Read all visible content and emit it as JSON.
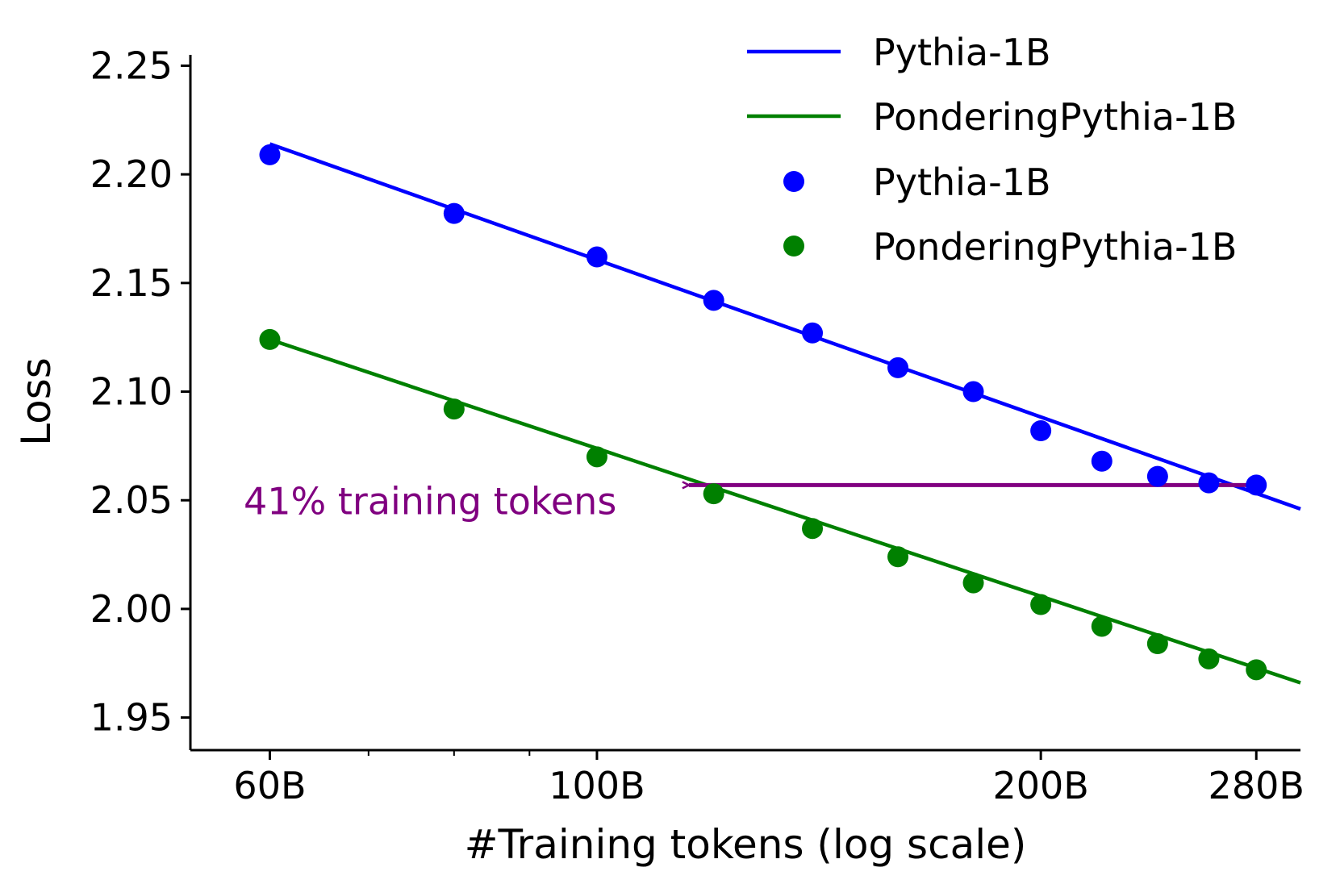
{
  "chart_data": {
    "type": "scatter",
    "xscale": "log",
    "xlabel": "#Training tokens (log scale)",
    "ylabel": "Loss",
    "xlim": [
      53,
      300
    ],
    "ylim": [
      1.935,
      2.255
    ],
    "xticks": [
      {
        "value": 60,
        "label": "60B"
      },
      {
        "value": 100,
        "label": "100B"
      },
      {
        "value": 200,
        "label": "200B"
      },
      {
        "value": 280,
        "label": "280B"
      }
    ],
    "xminor_ticks": [
      70,
      80,
      90
    ],
    "yticks": [
      {
        "value": 1.95,
        "label": "1.95"
      },
      {
        "value": 2.0,
        "label": "2.00"
      },
      {
        "value": 2.05,
        "label": "2.05"
      },
      {
        "value": 2.1,
        "label": "2.10"
      },
      {
        "value": 2.15,
        "label": "2.15"
      },
      {
        "value": 2.2,
        "label": "2.20"
      },
      {
        "value": 2.25,
        "label": "2.25"
      }
    ],
    "series": [
      {
        "name": "Pythia-1B",
        "color": "#0000ff",
        "points": [
          {
            "x": 60,
            "y": 2.209
          },
          {
            "x": 80,
            "y": 2.182
          },
          {
            "x": 100,
            "y": 2.162
          },
          {
            "x": 120,
            "y": 2.142
          },
          {
            "x": 140,
            "y": 2.127
          },
          {
            "x": 160,
            "y": 2.111
          },
          {
            "x": 180,
            "y": 2.1
          },
          {
            "x": 200,
            "y": 2.082
          },
          {
            "x": 220,
            "y": 2.068
          },
          {
            "x": 240,
            "y": 2.061
          },
          {
            "x": 260,
            "y": 2.058
          },
          {
            "x": 280,
            "y": 2.057
          }
        ],
        "fit": [
          {
            "x": 60,
            "y": 2.214
          },
          {
            "x": 300,
            "y": 2.046
          }
        ]
      },
      {
        "name": "PonderingPythia-1B",
        "color": "#008000",
        "points": [
          {
            "x": 60,
            "y": 2.124
          },
          {
            "x": 80,
            "y": 2.092
          },
          {
            "x": 100,
            "y": 2.07
          },
          {
            "x": 120,
            "y": 2.053
          },
          {
            "x": 140,
            "y": 2.037
          },
          {
            "x": 160,
            "y": 2.024
          },
          {
            "x": 180,
            "y": 2.012
          },
          {
            "x": 200,
            "y": 2.002
          },
          {
            "x": 220,
            "y": 1.992
          },
          {
            "x": 240,
            "y": 1.984
          },
          {
            "x": 260,
            "y": 1.977
          },
          {
            "x": 280,
            "y": 1.972
          }
        ],
        "fit": [
          {
            "x": 60,
            "y": 2.124
          },
          {
            "x": 300,
            "y": 1.966
          }
        ]
      }
    ],
    "legend": {
      "placement": "top-right",
      "entries": [
        {
          "label": "Pythia-1B",
          "kind": "line",
          "color": "#0000ff"
        },
        {
          "label": "PonderingPythia-1B",
          "kind": "line",
          "color": "#008000"
        },
        {
          "label": "Pythia-1B",
          "kind": "marker",
          "color": "#0000ff"
        },
        {
          "label": "PonderingPythia-1B",
          "kind": "marker",
          "color": "#008000"
        }
      ]
    },
    "annotation": {
      "text": "41% training tokens",
      "color": "#800080",
      "arrow_from": {
        "x": 280,
        "y": 2.057
      },
      "arrow_to": {
        "x": 115,
        "y": 2.057
      }
    },
    "grid": false
  }
}
